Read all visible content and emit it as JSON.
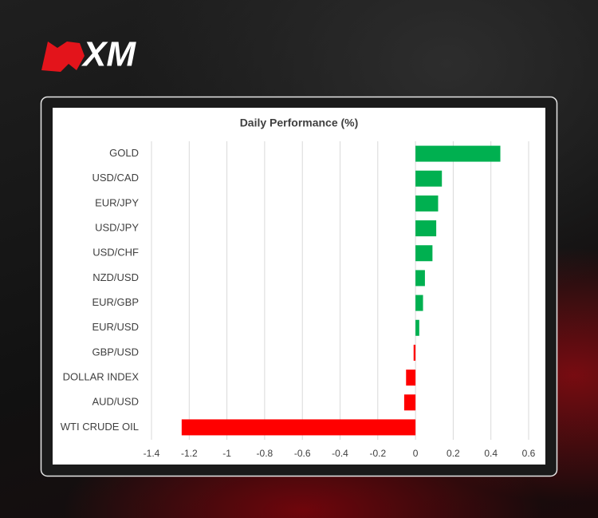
{
  "logo": "XM",
  "chart_data": {
    "type": "hbar",
    "title": "Daily Performance (%)",
    "categories": [
      "GOLD",
      "USD/CAD",
      "EUR/JPY",
      "USD/JPY",
      "USD/CHF",
      "NZD/USD",
      "EUR/GBP",
      "EUR/USD",
      "GBP/USD",
      "DOLLAR INDEX",
      "AUD/USD",
      "WTI CRUDE OIL"
    ],
    "values": [
      0.45,
      0.14,
      0.12,
      0.11,
      0.09,
      0.05,
      0.04,
      0.02,
      -0.01,
      -0.05,
      -0.06,
      -1.24
    ],
    "positive_color": "#00b050",
    "negative_color": "#ff0000",
    "xlim": [
      -1.4,
      0.6
    ],
    "xticks": [
      -1.4,
      -1.2,
      -1,
      -0.8,
      -0.6,
      -0.4,
      -0.2,
      0,
      0.2,
      0.4,
      0.6
    ],
    "grid": true
  }
}
